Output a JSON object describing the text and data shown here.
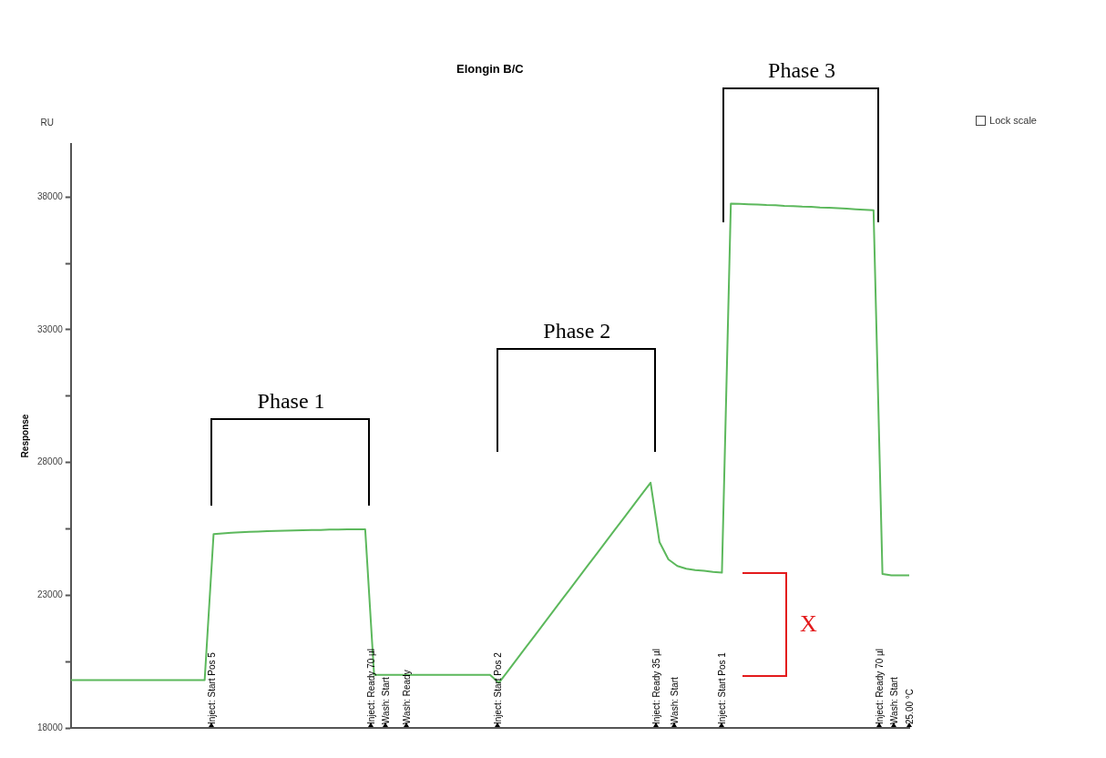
{
  "chart_data": {
    "type": "line",
    "title": "Elongin B/C",
    "ylabel": "Response",
    "categories": [
      null,
      null,
      null,
      null,
      null,
      null,
      null,
      null,
      null,
      null,
      null,
      null,
      null,
      null,
      null,
      null,
      null,
      null,
      null,
      null,
      null,
      null,
      null,
      null,
      null,
      null,
      null,
      null,
      null,
      null,
      null,
      null,
      null,
      null,
      null,
      null,
      null,
      null,
      null,
      null,
      null,
      null,
      null,
      null,
      null,
      null,
      null,
      null,
      null,
      null,
      null,
      null,
      null,
      null,
      null,
      null,
      null,
      null,
      null,
      null,
      null,
      null,
      null,
      null,
      null,
      null,
      null,
      null,
      null,
      null,
      null,
      null,
      null,
      null,
      null,
      null,
      null,
      null,
      null,
      null,
      null,
      null,
      null,
      null,
      null,
      null,
      null,
      null,
      null,
      null,
      null,
      null,
      null,
      null,
      null
    ],
    "series": [
      {
        "color": "#5cb85c",
        "values": [
          19800,
          19800,
          19800,
          19800,
          19800,
          19800,
          19800,
          19800,
          19800,
          19800,
          19800,
          19800,
          19800,
          19800,
          19800,
          19800,
          25300,
          25330,
          25350,
          25370,
          25390,
          25400,
          25410,
          25420,
          25430,
          25440,
          25450,
          25460,
          25460,
          25470,
          25470,
          25480,
          25480,
          25480,
          20000,
          20000,
          20000,
          20000,
          20000,
          20000,
          20000,
          20000,
          20000,
          20000,
          20000,
          20000,
          20000,
          20000,
          19700,
          20140,
          20590,
          21030,
          21470,
          21920,
          22360,
          22810,
          23250,
          23690,
          24140,
          24580,
          25020,
          25470,
          25910,
          26350,
          26800,
          27240,
          25000,
          24350,
          24100,
          24000,
          23950,
          23920,
          23880,
          23850,
          37750,
          37740,
          37730,
          37720,
          37700,
          37690,
          37670,
          37660,
          37640,
          37630,
          37610,
          37600,
          37580,
          37560,
          37540,
          37520,
          37500,
          23800,
          23750,
          23750,
          23750
        ]
      }
    ],
    "ylim": [
      18000,
      40000
    ],
    "yticks": [
      18000,
      {
        "value": 20500,
        "label": null
      },
      23000,
      {
        "value": 25500,
        "label": null
      },
      28000,
      {
        "value": 30500,
        "label": null
      },
      33000,
      {
        "value": 35500,
        "label": null
      },
      38000
    ],
    "grid": false,
    "legend": false,
    "marker": "none",
    "line_style": "solid",
    "tick_labels": "y",
    "annotations": [
      "Phase 1",
      "Phase 2",
      "Phase 3",
      "X",
      "RU",
      "Lock scale",
      "Inject: Start Pos 5",
      "Inject: Ready 70 µl",
      "Wash: Start",
      "Wash: Ready",
      "Inject: Start Pos 2",
      "Inject: Ready 35 µl",
      "Wash: Start",
      "Inject: Start Pos 1",
      "Inject: Ready 70 µl",
      "Wash: Start",
      "25.00 °C"
    ]
  }
}
